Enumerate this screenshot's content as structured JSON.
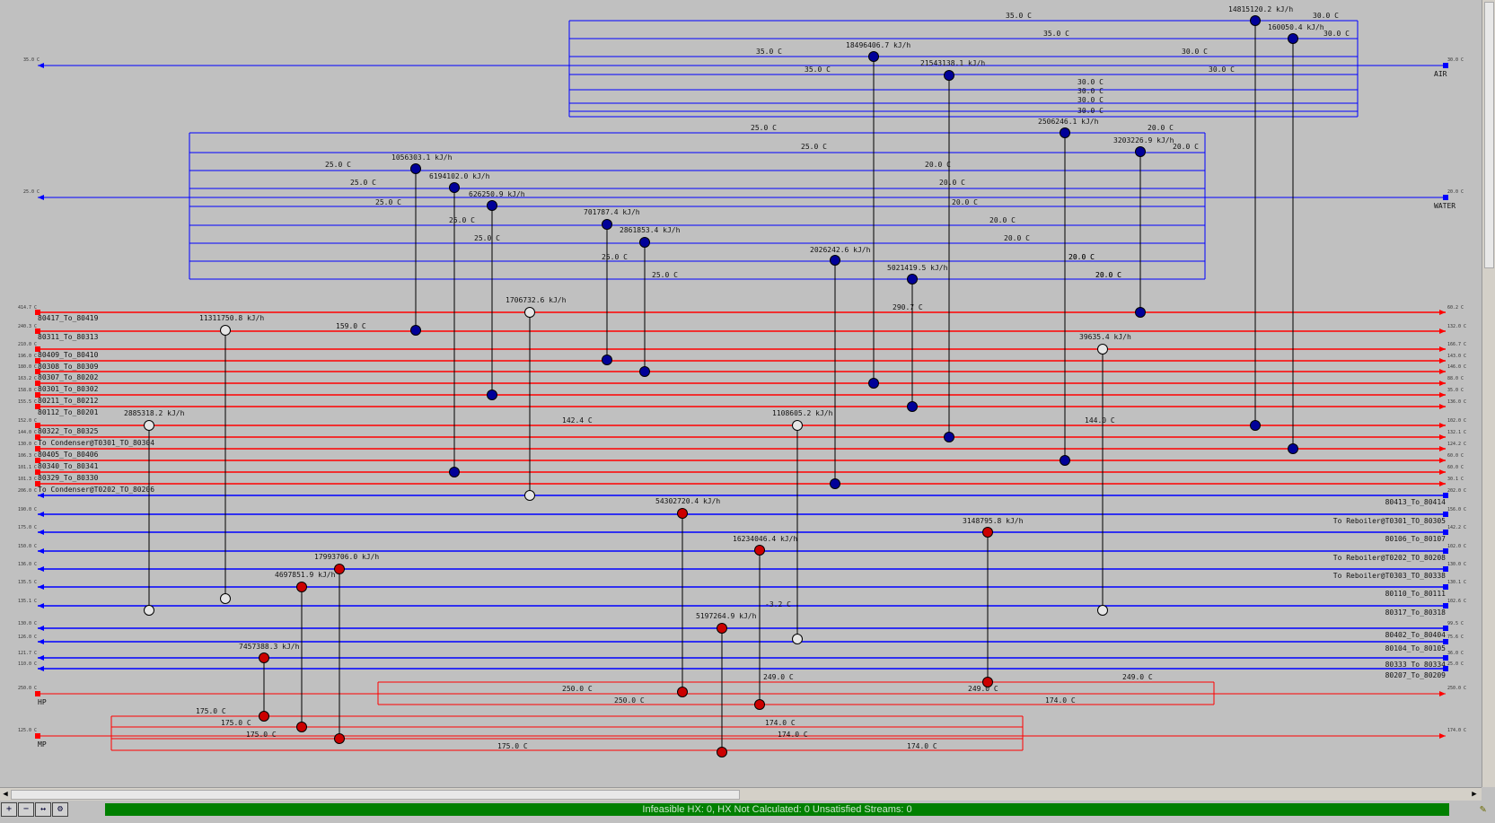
{
  "utilities": [
    {
      "name": "AIR",
      "left_t": "35.0 C",
      "right_t": "30.0 C",
      "kind": "cold"
    },
    {
      "name": "WATER",
      "left_t": "25.0 C",
      "right_t": "20.0 C",
      "kind": "cold"
    },
    {
      "name": "HP",
      "left_t": "250.0 C",
      "right_t": "250.0 C",
      "kind": "hot"
    },
    {
      "name": "MP",
      "left_t": "125.0 C",
      "right_t": "174.0 C",
      "kind": "hot"
    }
  ],
  "hot_streams": [
    {
      "name": "80417_To_80419",
      "left_t": "414.7 C",
      "right_t": "60.2 C"
    },
    {
      "name": "80311_To_80313",
      "left_t": "240.3 C",
      "right_t": "132.0 C"
    },
    {
      "name": "80409_To_80410",
      "left_t": "210.0 C",
      "right_t": "166.7 C"
    },
    {
      "name": "80308_To_80309",
      "left_t": "196.0 C",
      "right_t": "143.0 C"
    },
    {
      "name": "80307_To_80202",
      "left_t": "180.0 C",
      "right_t": "146.0 C"
    },
    {
      "name": "80301_To_80302",
      "left_t": "163.2 C",
      "right_t": "88.0 C"
    },
    {
      "name": "80211_To_80212",
      "left_t": "158.8 C",
      "right_t": "35.0 C"
    },
    {
      "name": "80112_To_80201",
      "left_t": "155.5 C",
      "right_t": "136.0 C"
    },
    {
      "name": "80322_To_80325",
      "left_t": "152.0 C",
      "right_t": "102.0 C"
    },
    {
      "name": "To Condenser@T0301_TO_80304",
      "left_t": "144.0 C",
      "right_t": "132.1 C"
    },
    {
      "name": "80405_To_80406",
      "left_t": "130.0 C",
      "right_t": "124.2 C"
    },
    {
      "name": "80340_To_80341",
      "left_t": "106.3 C",
      "right_t": "60.0 C"
    },
    {
      "name": "80329_To_80330",
      "left_t": "101.1 C",
      "right_t": "60.0 C"
    },
    {
      "name": "To Condenser@T0202_TO_80206",
      "left_t": "101.3 C",
      "right_t": "30.1 C"
    }
  ],
  "cold_streams": [
    {
      "name": "80413_To_80414",
      "left_t": "206.0 C",
      "right_t": "202.0 C"
    },
    {
      "name": "To Reboiler@T0301_TO_80305",
      "left_t": "190.0 C",
      "right_t": "156.0 C"
    },
    {
      "name": "80106_To_80107",
      "left_t": "175.0 C",
      "right_t": "142.2 C"
    },
    {
      "name": "To Reboiler@T0202_TO_80208",
      "left_t": "150.0 C",
      "right_t": "102.0 C"
    },
    {
      "name": "To Reboiler@T0303_TO_80338",
      "left_t": "136.0 C",
      "right_t": "130.0 C"
    },
    {
      "name": "80110_To_80111",
      "left_t": "135.5 C",
      "right_t": "130.1 C"
    },
    {
      "name": "80317_To_80318",
      "left_t": "135.1 C",
      "right_t": "102.6 C"
    },
    {
      "name": "80402_To_80404",
      "left_t": "130.0 C",
      "right_t": "99.5 C"
    },
    {
      "name": "80104_To_80105",
      "left_t": "126.0 C",
      "right_t": "75.6 C"
    },
    {
      "name": "80333_To_80334",
      "left_t": "121.7 C",
      "right_t": "36.0 C"
    },
    {
      "name": "80207_To_80209",
      "left_t": "110.0 C",
      "right_t": "25.0 C"
    }
  ],
  "air_branches": {
    "left": [
      "35.0 C",
      "35.0 C",
      "35.0 C",
      "35.0 C"
    ],
    "right": [
      "30.0 C",
      "30.0 C",
      "30.0 C",
      "30.0 C",
      "30.0 C",
      "30.0 C",
      "30.0 C",
      "30.0 C"
    ]
  },
  "water_branches": {
    "left": [
      "25.0 C",
      "25.0 C",
      "25.0 C",
      "25.0 C",
      "25.0 C",
      "25.0 C",
      "25.0 C",
      "25.0 C",
      "25.0 C"
    ],
    "right": [
      "20.0 C",
      "20.0 C",
      "20.0 C",
      "20.0 C",
      "20.0 C",
      "20.0 C",
      "20.0 C",
      "20.0 C",
      "20.0 C",
      "20.0 C",
      "20.0 C"
    ]
  },
  "hp_branches": [
    "250.0 C",
    "250.0 C",
    "249.0 C",
    "249.0 C",
    "249.0 C"
  ],
  "mp_branches": [
    "175.0 C",
    "175.0 C",
    "175.0 C",
    "175.0 C",
    "174.0 C",
    "174.0 C",
    "174.0 C",
    "174.0 C"
  ],
  "stream_temps": [
    "159.0 C",
    "290.7 C",
    "142.4 C",
    "144.0 C",
    "-3.2 C",
    "250.0 C",
    "174.0 C"
  ],
  "exchangers": [
    {
      "duty": "14815120.2 kJ/h",
      "type": "air"
    },
    {
      "duty": "160050.4 kJ/h",
      "type": "air"
    },
    {
      "duty": "18496406.7 kJ/h",
      "type": "air"
    },
    {
      "duty": "21543138.1 kJ/h",
      "type": "air"
    },
    {
      "duty": "2506246.1 kJ/h",
      "type": "water"
    },
    {
      "duty": "3203226.9 kJ/h",
      "type": "water"
    },
    {
      "duty": "1056303.1 kJ/h",
      "type": "water"
    },
    {
      "duty": "6194102.0 kJ/h",
      "type": "water"
    },
    {
      "duty": "626250.9 kJ/h",
      "type": "water"
    },
    {
      "duty": "701787.4 kJ/h",
      "type": "water"
    },
    {
      "duty": "2861853.4 kJ/h",
      "type": "water"
    },
    {
      "duty": "2026242.6 kJ/h",
      "type": "water"
    },
    {
      "duty": "5021419.5 kJ/h",
      "type": "water"
    },
    {
      "duty": "1706732.6 kJ/h",
      "type": "process"
    },
    {
      "duty": "11311750.8 kJ/h",
      "type": "process"
    },
    {
      "duty": "39635.4 kJ/h",
      "type": "process"
    },
    {
      "duty": "2885318.2 kJ/h",
      "type": "process"
    },
    {
      "duty": "1108605.2 kJ/h",
      "type": "process"
    },
    {
      "duty": "54302720.4 kJ/h",
      "type": "hp"
    },
    {
      "duty": "16234046.4 kJ/h",
      "type": "hp"
    },
    {
      "duty": "3148795.8 kJ/h",
      "type": "hp"
    },
    {
      "duty": "5197264.9 kJ/h",
      "type": "mp"
    },
    {
      "duty": "17993706.0 kJ/h",
      "type": "mp"
    },
    {
      "duty": "4697851.9 kJ/h",
      "type": "mp"
    },
    {
      "duty": "7457388.3 kJ/h",
      "type": "mp"
    }
  ],
  "status_text": "Infeasible HX: 0, HX Not Calculated: 0     Unsatisfied Streams: 0",
  "toolbar": {
    "zoom_in": "+",
    "zoom_out": "−",
    "fit": "↔",
    "settings": "⚙"
  },
  "icons": {
    "pen": "pencil-icon"
  },
  "colors": {
    "hot": "#ff0000",
    "cold": "#0000ff",
    "hot_node": "#cc0000",
    "cold_node": "#000099",
    "process_node": "#e6e6e6",
    "background": "#c0c0c0",
    "status": "#008000"
  }
}
